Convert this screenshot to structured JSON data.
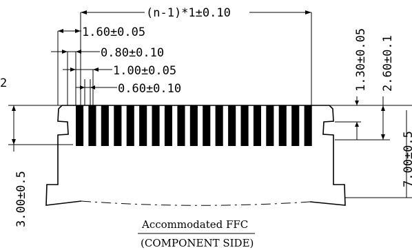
{
  "dimensions": {
    "top_span": "(n-1)*1±0.10",
    "d1": "1.60±0.05",
    "d2": "0.80±0.10",
    "d3": "1.00±0.05",
    "d4": "0.60±0.10",
    "right_small": "1.30±0.05",
    "right_large": "2.60±0.1",
    "right_edge": "7.00±0.5",
    "left_height": "3.00±0.5",
    "left_edge_fragment": "2"
  },
  "caption": {
    "line1": "Accommodated FFC",
    "line2": "(COMPONENT SIDE)"
  },
  "contact_count": 19
}
